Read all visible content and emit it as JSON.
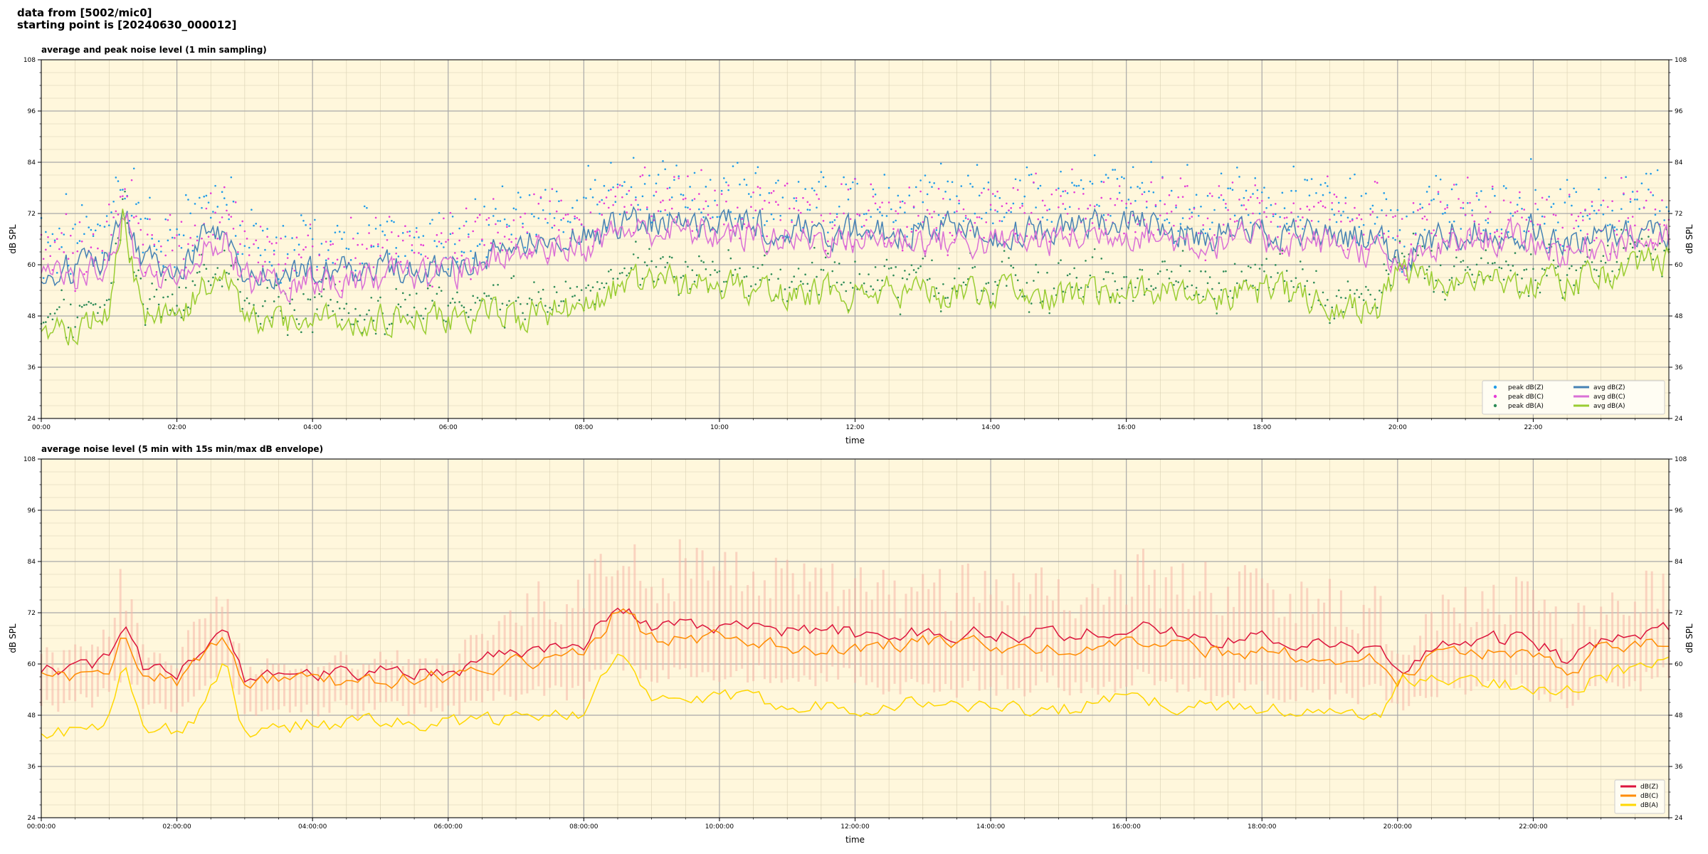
{
  "header": {
    "line1": "data from [5002/mic0]",
    "line2": "starting point is [20240630_000012]"
  },
  "colors": {
    "panel_bg": "#fff7dc",
    "peak_z": "#1f9be8",
    "peak_c": "#e53bd6",
    "peak_a": "#2e8b57",
    "avg_z": "#4682b4",
    "avg_c": "#da70d6",
    "avg_a": "#9acd32",
    "db_z": "#dc143c",
    "db_c": "#ff8c00",
    "db_a": "#ffd700",
    "envelope": "#f5b7a8"
  },
  "chart_data": [
    {
      "type": "line",
      "title": "average and peak noise level (1 min sampling)",
      "xlabel": "time",
      "ylabel": "dB SPL",
      "ylim": [
        24,
        108
      ],
      "xlim_hours": [
        0,
        24
      ],
      "yticks": [
        "108",
        "96",
        "84",
        "72",
        "60",
        "48",
        "36",
        "24"
      ],
      "xticks": [
        "00:00",
        "02:00",
        "04:00",
        "06:00",
        "08:00",
        "10:00",
        "12:00",
        "14:00",
        "16:00",
        "18:00",
        "20:00",
        "22:00"
      ],
      "grid": true,
      "legend_position": "lower-right",
      "legend": [
        {
          "label": "peak dB(Z)",
          "kind": "dot",
          "color": "#1f9be8"
        },
        {
          "label": "peak dB(C)",
          "kind": "dot",
          "color": "#e53bd6"
        },
        {
          "label": "peak dB(A)",
          "kind": "dot",
          "color": "#2e8b57"
        },
        {
          "label": "avg dB(Z)",
          "kind": "line",
          "color": "#4682b4"
        },
        {
          "label": "avg dB(C)",
          "kind": "line",
          "color": "#da70d6"
        },
        {
          "label": "avg dB(A)",
          "kind": "line",
          "color": "#9acd32"
        }
      ],
      "anchor_hours": [
        0,
        0.5,
        1.0,
        1.2,
        1.5,
        2.0,
        2.4,
        2.7,
        3.0,
        4.0,
        5.0,
        6.0,
        6.5,
        7.0,
        7.5,
        8.0,
        8.5,
        9.0,
        10.0,
        11.0,
        12.0,
        13.0,
        14.0,
        15.0,
        16.0,
        17.0,
        18.0,
        19.0,
        19.7,
        20.0,
        20.5,
        21.0,
        22.0,
        22.5,
        23.0,
        23.5,
        24.0
      ],
      "series": [
        {
          "name": "avg dB(Z)",
          "color": "#4682b4",
          "jitter": 6,
          "values": [
            59,
            59,
            62,
            74,
            60,
            59,
            67,
            68,
            58,
            58,
            59,
            59,
            63,
            65,
            66,
            66,
            70,
            70,
            70,
            68,
            68,
            69,
            67,
            68,
            70,
            67,
            68,
            67,
            66,
            60,
            66,
            68,
            68,
            64,
            68,
            68,
            68
          ]
        },
        {
          "name": "avg dB(C)",
          "color": "#da70d6",
          "jitter": 6,
          "values": [
            57,
            57,
            60,
            72,
            58,
            57,
            64,
            65,
            56,
            56,
            57,
            57,
            61,
            63,
            64,
            64,
            68,
            68,
            67,
            66,
            66,
            66,
            65,
            66,
            68,
            65,
            66,
            65,
            63,
            58,
            63,
            66,
            66,
            62,
            65,
            66,
            65
          ]
        },
        {
          "name": "avg dB(A)",
          "color": "#9acd32",
          "jitter": 6,
          "values": [
            46,
            45,
            49,
            72,
            47,
            46,
            55,
            60,
            46,
            47,
            47,
            47,
            48,
            48,
            49,
            49,
            55,
            56,
            55,
            54,
            53,
            54,
            53,
            52,
            55,
            53,
            54,
            52,
            49,
            58,
            56,
            57,
            56,
            55,
            58,
            60,
            62
          ]
        },
        {
          "name": "peak dB(Z)",
          "color": "#1f9be8",
          "kind": "scatter",
          "offset": 10,
          "spread": 8
        },
        {
          "name": "peak dB(C)",
          "color": "#e53bd6",
          "kind": "scatter",
          "offset": 9,
          "spread": 8
        },
        {
          "name": "peak dB(A)",
          "color": "#2e8b57",
          "kind": "scatter",
          "offset": 4,
          "spread": 6
        }
      ]
    },
    {
      "type": "line",
      "title": "average noise level (5 min with 15s min/max dB envelope)",
      "xlabel": "time",
      "ylabel": "dB SPL",
      "ylim": [
        24,
        108
      ],
      "xlim_hours": [
        0,
        24
      ],
      "yticks": [
        "108",
        "96",
        "84",
        "72",
        "60",
        "48",
        "36",
        "24"
      ],
      "xticks": [
        "00:00:00",
        "02:00:00",
        "04:00:00",
        "06:00:00",
        "08:00:00",
        "10:00:00",
        "12:00:00",
        "14:00:00",
        "16:00:00",
        "18:00:00",
        "20:00:00",
        "22:00:00"
      ],
      "grid": true,
      "legend_position": "lower-right",
      "legend": [
        {
          "label": "dB(Z)",
          "kind": "line",
          "color": "#dc143c"
        },
        {
          "label": "dB(C)",
          "kind": "line",
          "color": "#ff8c00"
        },
        {
          "label": "dB(A)",
          "kind": "line",
          "color": "#ffd700"
        }
      ],
      "anchor_hours": [
        0,
        0.5,
        1.0,
        1.2,
        1.5,
        2.0,
        2.4,
        2.7,
        3.0,
        4.0,
        5.0,
        6.0,
        6.5,
        7.0,
        7.5,
        8.0,
        8.5,
        9.0,
        10.0,
        11.0,
        12.0,
        13.0,
        14.0,
        15.0,
        16.0,
        17.0,
        18.0,
        19.0,
        19.7,
        20.0,
        20.5,
        21.0,
        22.0,
        22.5,
        23.0,
        23.5,
        24.0
      ],
      "envelope": {
        "color": "#f5b7a8",
        "up": [
          4,
          4,
          6,
          14,
          5,
          4,
          10,
          10,
          3,
          3,
          3,
          4,
          8,
          12,
          14,
          14,
          16,
          16,
          16,
          14,
          14,
          15,
          14,
          15,
          16,
          15,
          15,
          14,
          12,
          4,
          10,
          12,
          12,
          8,
          12,
          12,
          12
        ],
        "down": [
          3,
          3,
          3,
          6,
          3,
          3,
          4,
          4,
          3,
          3,
          3,
          3,
          4,
          5,
          6,
          6,
          7,
          7,
          7,
          7,
          7,
          7,
          7,
          7,
          7,
          7,
          7,
          6,
          5,
          3,
          5,
          6,
          6,
          5,
          6,
          6,
          6
        ]
      },
      "series": [
        {
          "name": "dB(Z)",
          "color": "#dc143c",
          "jitter": 3,
          "values": [
            59,
            59,
            61,
            69,
            59,
            58,
            64,
            67,
            57,
            58,
            58,
            58,
            61,
            63,
            64,
            65,
            75,
            69,
            69,
            68,
            67,
            68,
            67,
            67,
            69,
            66,
            66,
            64,
            63,
            57,
            64,
            65,
            66,
            60,
            66,
            67,
            68
          ]
        },
        {
          "name": "dB(C)",
          "color": "#ff8c00",
          "jitter": 3,
          "values": [
            57,
            57,
            59,
            67,
            57,
            56,
            62,
            66,
            56,
            56,
            56,
            57,
            58,
            60,
            61,
            62,
            73,
            66,
            66,
            64,
            64,
            65,
            64,
            64,
            66,
            63,
            63,
            61,
            61,
            56,
            62,
            63,
            63,
            58,
            64,
            65,
            66
          ]
        },
        {
          "name": "dB(A)",
          "color": "#ffd700",
          "jitter": 3,
          "values": [
            44,
            44,
            47,
            60,
            45,
            44,
            50,
            60,
            44,
            46,
            46,
            46,
            46,
            48,
            49,
            49,
            62,
            51,
            52,
            51,
            50,
            51,
            50,
            49,
            52,
            50,
            50,
            48,
            47,
            56,
            56,
            56,
            55,
            54,
            57,
            59,
            61
          ]
        }
      ]
    }
  ]
}
